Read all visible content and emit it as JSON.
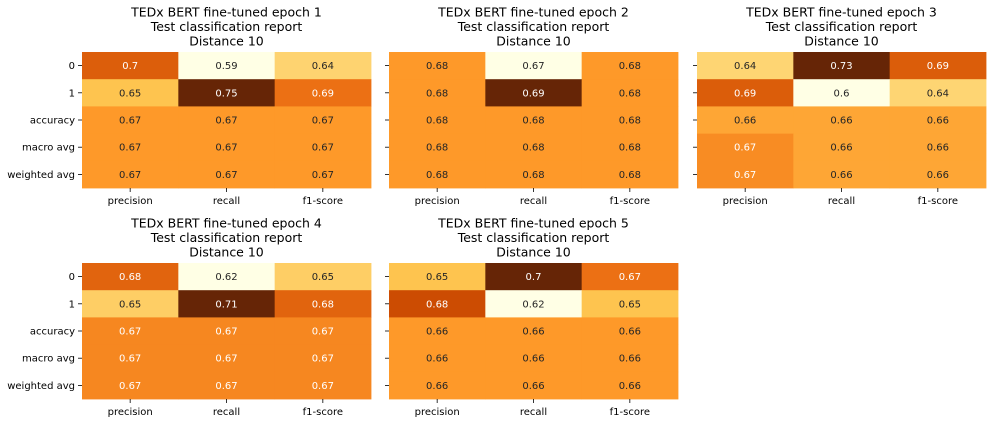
{
  "chart_data": [
    {
      "type": "heatmap",
      "title_lines": [
        "TEDx BERT fine-tuned epoch 1",
        "Test classification report",
        "Distance 10"
      ],
      "rows": [
        "0",
        "1",
        "accuracy",
        "macro avg",
        "weighted avg"
      ],
      "columns": [
        "precision",
        "recall",
        "f1-score"
      ],
      "values": [
        [
          0.7,
          0.59,
          0.64
        ],
        [
          0.65,
          0.75,
          0.69
        ],
        [
          0.67,
          0.67,
          0.67
        ],
        [
          0.67,
          0.67,
          0.67
        ],
        [
          0.67,
          0.67,
          0.67
        ]
      ],
      "labels": [
        [
          "0.7",
          "0.59",
          "0.64"
        ],
        [
          "0.65",
          "0.75",
          "0.69"
        ],
        [
          "0.67",
          "0.67",
          "0.67"
        ],
        [
          "0.67",
          "0.67",
          "0.67"
        ],
        [
          "0.67",
          "0.67",
          "0.67"
        ]
      ],
      "colormap": "YlOrBr",
      "colorbar": false
    },
    {
      "type": "heatmap",
      "title_lines": [
        "TEDx BERT fine-tuned epoch 2",
        "Test classification report",
        "Distance 10"
      ],
      "rows": [
        "0",
        "1",
        "accuracy",
        "macro avg",
        "weighted avg"
      ],
      "columns": [
        "precision",
        "recall",
        "f1-score"
      ],
      "values": [
        [
          0.68,
          0.67,
          0.68
        ],
        [
          0.68,
          0.69,
          0.68
        ],
        [
          0.68,
          0.68,
          0.68
        ],
        [
          0.68,
          0.68,
          0.68
        ],
        [
          0.68,
          0.68,
          0.68
        ]
      ],
      "labels": [
        [
          "0.68",
          "0.67",
          "0.68"
        ],
        [
          "0.68",
          "0.69",
          "0.68"
        ],
        [
          "0.68",
          "0.68",
          "0.68"
        ],
        [
          "0.68",
          "0.68",
          "0.68"
        ],
        [
          "0.68",
          "0.68",
          "0.68"
        ]
      ],
      "colormap": "YlOrBr",
      "colorbar": false
    },
    {
      "type": "heatmap",
      "title_lines": [
        "TEDx BERT fine-tuned epoch 3",
        "Test classification report",
        "Distance 10"
      ],
      "rows": [
        "0",
        "1",
        "accuracy",
        "macro avg",
        "weighted avg"
      ],
      "columns": [
        "precision",
        "recall",
        "f1-score"
      ],
      "values": [
        [
          0.64,
          0.73,
          0.69
        ],
        [
          0.69,
          0.6,
          0.64
        ],
        [
          0.66,
          0.66,
          0.66
        ],
        [
          0.67,
          0.66,
          0.66
        ],
        [
          0.67,
          0.66,
          0.66
        ]
      ],
      "labels": [
        [
          "0.64",
          "0.73",
          "0.69"
        ],
        [
          "0.69",
          "0.6",
          "0.64"
        ],
        [
          "0.66",
          "0.66",
          "0.66"
        ],
        [
          "0.67",
          "0.66",
          "0.66"
        ],
        [
          "0.67",
          "0.66",
          "0.66"
        ]
      ],
      "colormap": "YlOrBr",
      "colorbar": false
    },
    {
      "type": "heatmap",
      "title_lines": [
        "TEDx BERT fine-tuned epoch 4",
        "Test classification report",
        "Distance 10"
      ],
      "rows": [
        "0",
        "1",
        "accuracy",
        "macro avg",
        "weighted avg"
      ],
      "columns": [
        "precision",
        "recall",
        "f1-score"
      ],
      "values": [
        [
          0.68,
          0.62,
          0.65
        ],
        [
          0.65,
          0.71,
          0.68
        ],
        [
          0.67,
          0.67,
          0.67
        ],
        [
          0.67,
          0.67,
          0.67
        ],
        [
          0.67,
          0.67,
          0.67
        ]
      ],
      "labels": [
        [
          "0.68",
          "0.62",
          "0.65"
        ],
        [
          "0.65",
          "0.71",
          "0.68"
        ],
        [
          "0.67",
          "0.67",
          "0.67"
        ],
        [
          "0.67",
          "0.67",
          "0.67"
        ],
        [
          "0.67",
          "0.67",
          "0.67"
        ]
      ],
      "colormap": "YlOrBr",
      "colorbar": false
    },
    {
      "type": "heatmap",
      "title_lines": [
        "TEDx BERT fine-tuned epoch 5",
        "Test classification report",
        "Distance 10"
      ],
      "rows": [
        "0",
        "1",
        "accuracy",
        "macro avg",
        "weighted avg"
      ],
      "columns": [
        "precision",
        "recall",
        "f1-score"
      ],
      "values": [
        [
          0.65,
          0.7,
          0.67
        ],
        [
          0.68,
          0.62,
          0.65
        ],
        [
          0.66,
          0.66,
          0.66
        ],
        [
          0.66,
          0.66,
          0.66
        ],
        [
          0.66,
          0.66,
          0.66
        ]
      ],
      "labels": [
        [
          "0.65",
          "0.7",
          "0.67"
        ],
        [
          "0.68",
          "0.62",
          "0.65"
        ],
        [
          "0.66",
          "0.66",
          "0.66"
        ],
        [
          "0.66",
          "0.66",
          "0.66"
        ],
        [
          "0.66",
          "0.66",
          "0.66"
        ]
      ],
      "colormap": "YlOrBr",
      "colorbar": false
    }
  ]
}
